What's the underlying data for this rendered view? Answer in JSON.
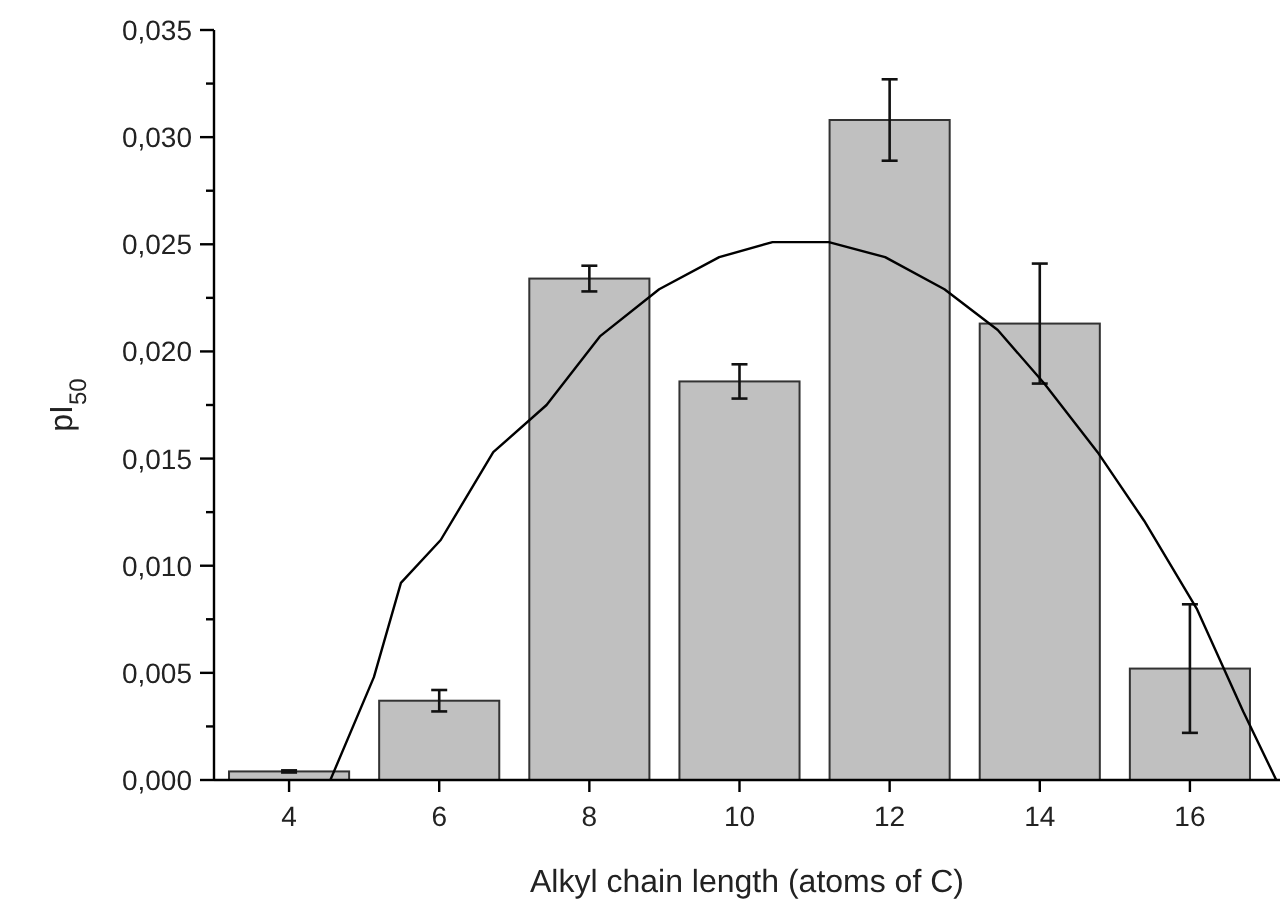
{
  "chart_data": {
    "type": "bar",
    "xlabel": "Alkyl chain length (atoms of C)",
    "ylabel": "pI$_{50}$",
    "x": [
      4,
      6,
      8,
      10,
      12,
      14,
      16
    ],
    "xlim": [
      3,
      17.2
    ],
    "xticks": [
      4,
      6,
      8,
      10,
      12,
      14,
      16
    ],
    "ylim": [
      0,
      0.035
    ],
    "yticks": [
      {
        "value": 0,
        "label": "0,000"
      },
      {
        "value": 0.0025,
        "label": null
      },
      {
        "value": 0.005,
        "label": "0,005"
      },
      {
        "value": 0.0075,
        "label": null
      },
      {
        "value": 0.01,
        "label": "0,010"
      },
      {
        "value": 0.0125,
        "label": null
      },
      {
        "value": 0.015,
        "label": "0,015"
      },
      {
        "value": 0.0175,
        "label": null
      },
      {
        "value": 0.02,
        "label": "0,020"
      },
      {
        "value": 0.0225,
        "label": null
      },
      {
        "value": 0.025,
        "label": "0,025"
      },
      {
        "value": 0.0275,
        "label": null
      },
      {
        "value": 0.03,
        "label": "0,030"
      },
      {
        "value": 0.0325,
        "label": null
      },
      {
        "value": 0.035,
        "label": "0,035"
      }
    ],
    "grid": false,
    "series": [
      {
        "color": "#c0c0c0",
        "values": [
          0.0004,
          0.0037,
          0.0234,
          0.0186,
          0.0308,
          0.0213,
          0.0052
        ],
        "errors": [
          5e-05,
          0.0005,
          0.0006,
          0.0008,
          0.0019,
          0.0028,
          0.003
        ]
      },
      {
        "type": "line",
        "color": "#000000",
        "x": [
          4.55,
          5.13,
          5.49,
          6.02,
          6.72,
          7.43,
          8.14,
          8.93,
          9.73,
          10.44,
          11.19,
          11.94,
          12.73,
          13.44,
          14.06,
          14.77,
          15.39,
          16.09,
          16.71,
          17.15
        ],
        "values": [
          0,
          0.0048,
          0.0092,
          0.0112,
          0.0153,
          0.0175,
          0.0207,
          0.0229,
          0.0244,
          0.0251,
          0.0251,
          0.0244,
          0.0229,
          0.021,
          0.0185,
          0.0153,
          0.0121,
          0.008,
          0.0032,
          0
        ]
      }
    ]
  }
}
